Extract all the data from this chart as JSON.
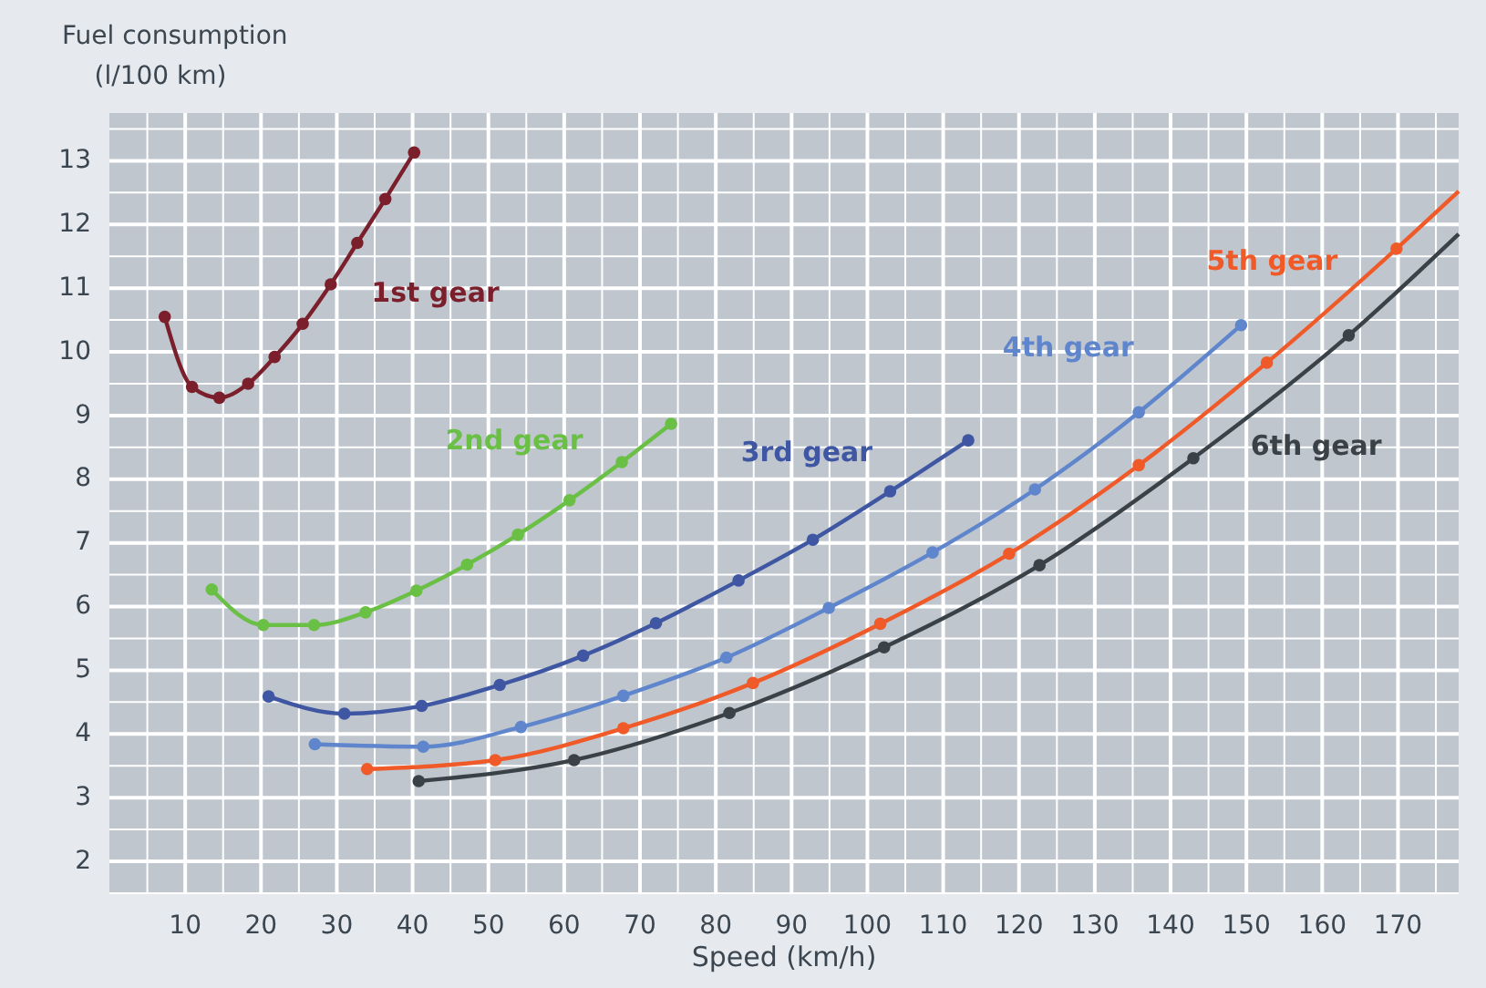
{
  "chart_data": {
    "type": "line",
    "ylabel": "Fuel consumption\n(l/100 km)",
    "xlabel": "Speed (km/h)",
    "xlim": [
      0,
      178
    ],
    "xticks": [
      10,
      20,
      30,
      40,
      50,
      60,
      70,
      80,
      90,
      100,
      110,
      120,
      130,
      140,
      150,
      160,
      170
    ],
    "ylim": [
      1.5,
      13.75
    ],
    "yticks": [
      2,
      3,
      4,
      5,
      6,
      7,
      8,
      9,
      10,
      11,
      12,
      13
    ],
    "grid": true,
    "marker": "circle",
    "line_style": "solid",
    "series": [
      {
        "name": "1st gear",
        "color": "#7a1f2b",
        "x": [
          7.3,
          10.9,
          14.5,
          18.3,
          21.8,
          25.5,
          29.2,
          32.7,
          36.4,
          40.2
        ],
        "values": [
          10.55,
          9.45,
          9.28,
          9.5,
          9.92,
          10.44,
          11.06,
          11.71,
          12.4,
          13.13
        ]
      },
      {
        "name": "2nd gear",
        "color": "#6abf45",
        "x": [
          13.5,
          20.3,
          27.0,
          33.8,
          40.5,
          47.2,
          53.9,
          60.7,
          67.6,
          74.1
        ],
        "values": [
          6.27,
          5.71,
          5.71,
          5.91,
          6.25,
          6.66,
          7.13,
          7.67,
          8.27,
          8.87
        ]
      },
      {
        "name": "3rd gear",
        "color": "#3f57a3",
        "x": [
          21.0,
          31.0,
          41.2,
          51.5,
          62.5,
          72.1,
          83.0,
          92.8,
          103.0,
          113.3
        ],
        "values": [
          4.59,
          4.32,
          4.44,
          4.77,
          5.23,
          5.74,
          6.41,
          7.05,
          7.81,
          8.61
        ]
      },
      {
        "name": "4th gear",
        "color": "#5f86cc",
        "x": [
          27.1,
          41.4,
          54.3,
          67.8,
          81.4,
          94.9,
          108.6,
          122.1,
          135.8,
          149.3
        ],
        "values": [
          3.84,
          3.8,
          4.11,
          4.6,
          5.2,
          5.98,
          6.85,
          7.84,
          9.05,
          10.42
        ]
      },
      {
        "name": "5th gear",
        "color": "#f05a28",
        "x": [
          34.0,
          50.9,
          67.8,
          84.9,
          101.7,
          118.7,
          135.8,
          152.7,
          169.8,
          178.0
        ],
        "values": [
          3.45,
          3.59,
          4.09,
          4.8,
          5.73,
          6.83,
          8.22,
          9.83,
          11.62,
          12.52
        ]
      },
      {
        "name": "6th gear",
        "color": "#3a4248",
        "x": [
          40.8,
          61.3,
          81.8,
          102.2,
          122.7,
          143.0,
          163.5,
          178.0
        ],
        "values": [
          3.26,
          3.59,
          4.33,
          5.36,
          6.65,
          8.33,
          10.26,
          11.85
        ]
      }
    ]
  }
}
